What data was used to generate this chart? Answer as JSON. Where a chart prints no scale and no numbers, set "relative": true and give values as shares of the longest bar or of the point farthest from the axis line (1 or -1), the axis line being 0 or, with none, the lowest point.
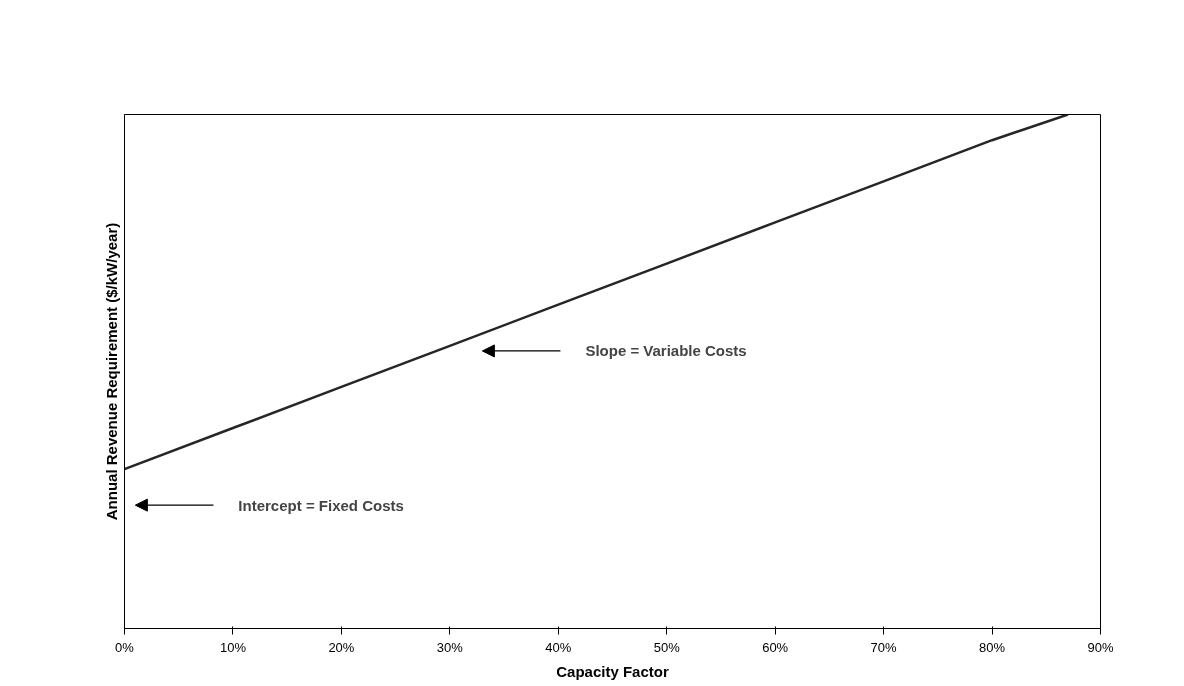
{
  "chart_data": {
    "type": "line",
    "relative": true,
    "xlabel": "Capacity Factor",
    "ylabel": "Annual Revenue Requirement ($/kW/year)",
    "x": [
      0,
      10,
      20,
      30,
      40,
      50,
      60,
      70,
      80,
      87
    ],
    "series": [
      {
        "color": "#262626",
        "values": [
          0.31,
          0.39,
          0.47,
          0.55,
          0.63,
          0.71,
          0.79,
          0.87,
          0.95,
          1.0
        ]
      }
    ],
    "xlim": [
      0,
      90
    ],
    "xticks": [
      {
        "value": 0,
        "label": "0%"
      },
      {
        "value": 10,
        "label": "10%"
      },
      {
        "value": 20,
        "label": "20%"
      },
      {
        "value": 30,
        "label": "30%"
      },
      {
        "value": 40,
        "label": "40%"
      },
      {
        "value": 50,
        "label": "50%"
      },
      {
        "value": 60,
        "label": "60%"
      },
      {
        "value": 70,
        "label": "70%"
      },
      {
        "value": 80,
        "label": "80%"
      },
      {
        "value": 90,
        "label": "90%"
      }
    ],
    "annotations": [
      "Slope = Variable Costs",
      "Intercept = Fixed Costs"
    ],
    "grid": false,
    "marker": "none",
    "line_style": "solid"
  }
}
